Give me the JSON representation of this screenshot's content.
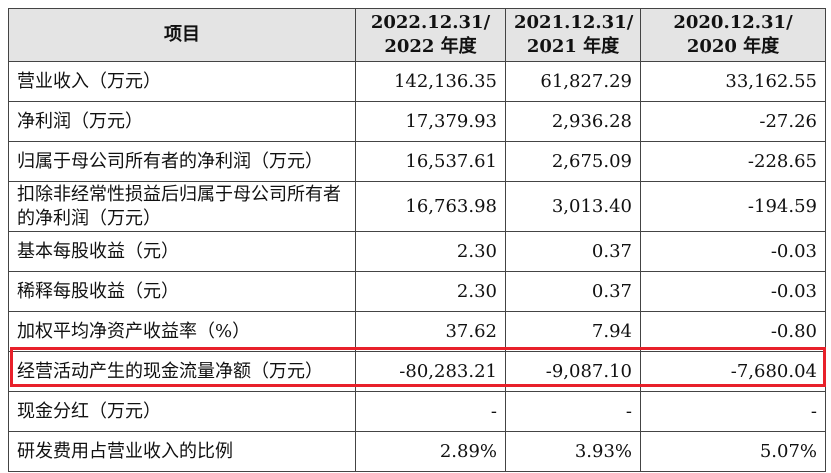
{
  "table": {
    "header": [
      "项目",
      [
        "2022.12.31/",
        "2022 年度"
      ],
      [
        "2021.12.31/",
        "2021 年度"
      ],
      [
        "2020.12.31/",
        "2020 年度"
      ]
    ],
    "rows": [
      [
        "营业收入（万元）",
        "142,136.35",
        "61,827.29",
        "33,162.55"
      ],
      [
        "净利润（万元）",
        "17,379.93",
        "2,936.28",
        "-27.26"
      ],
      [
        "归属于母公司所有者的净利润（万元）",
        "16,537.61",
        "2,675.09",
        "-228.65"
      ],
      [
        "扣除非经常性损益后归属于母公司所有者的净利润（万元）",
        "16,763.98",
        "3,013.40",
        "-194.59"
      ],
      [
        "基本每股收益（元）",
        "2.30",
        "0.37",
        "-0.03"
      ],
      [
        "稀释每股收益（元）",
        "2.30",
        "0.37",
        "-0.03"
      ],
      [
        "加权平均净资产收益率（%）",
        "37.62",
        "7.94",
        "-0.80"
      ],
      [
        "经营活动产生的现金流量净额（万元）",
        "-80,283.21",
        "-9,087.10",
        "-7,680.04"
      ],
      [
        "现金分红（万元）",
        "-",
        "-",
        "-"
      ],
      [
        "研发费用占营业收入的比例",
        "2.89%",
        "3.93%",
        "5.07%"
      ]
    ]
  }
}
